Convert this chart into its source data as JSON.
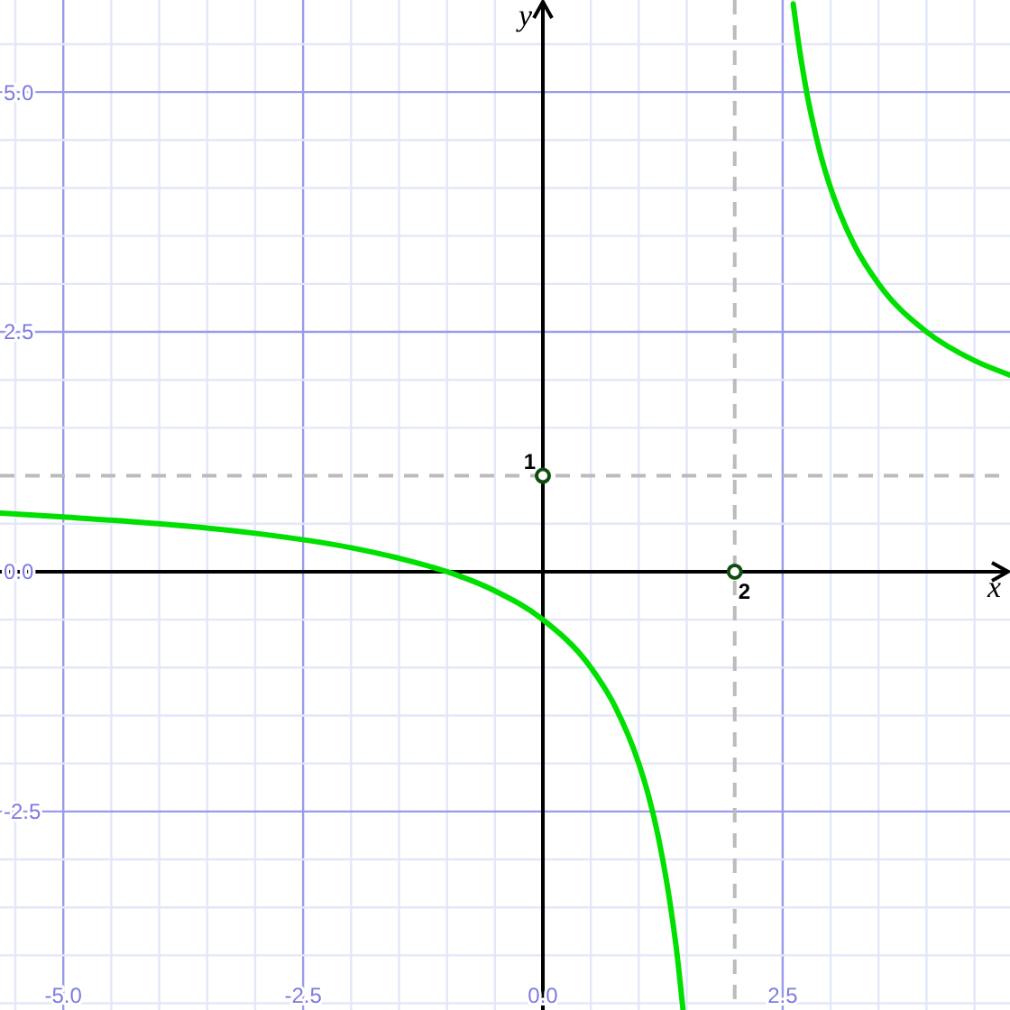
{
  "chart_data": {
    "type": "line",
    "xlabel": "x",
    "ylabel": "y",
    "xlim": [
      -5.66,
      4.87
    ],
    "ylim": [
      -4.57,
      5.96
    ],
    "xticks": [
      {
        "value": -5.5,
        "label": null
      },
      {
        "value": -5,
        "label": "-5.0"
      },
      {
        "value": -4.5,
        "label": null
      },
      {
        "value": -4,
        "label": null
      },
      {
        "value": -3.5,
        "label": null
      },
      {
        "value": -3,
        "label": null
      },
      {
        "value": -2.5,
        "label": "-2.5"
      },
      {
        "value": -2,
        "label": null
      },
      {
        "value": -1.5,
        "label": null
      },
      {
        "value": -1,
        "label": null
      },
      {
        "value": -0.5,
        "label": null
      },
      {
        "value": 0,
        "label": "0.0"
      },
      {
        "value": 0.5,
        "label": null
      },
      {
        "value": 1,
        "label": null
      },
      {
        "value": 1.5,
        "label": null
      },
      {
        "value": 2.5,
        "label": "2.5"
      },
      {
        "value": 3,
        "label": null
      },
      {
        "value": 3.5,
        "label": null
      },
      {
        "value": 4,
        "label": null
      },
      {
        "value": 4.5,
        "label": null
      }
    ],
    "yticks": [
      {
        "value": -4.5,
        "label": null
      },
      {
        "value": -4,
        "label": null
      },
      {
        "value": -3.5,
        "label": null
      },
      {
        "value": -3,
        "label": null
      },
      {
        "value": -2.5,
        "label": "-2.5"
      },
      {
        "value": -2,
        "label": null
      },
      {
        "value": -1.5,
        "label": null
      },
      {
        "value": -1,
        "label": null
      },
      {
        "value": -0.5,
        "label": null
      },
      {
        "value": 0,
        "label": "0.0"
      },
      {
        "value": 0.5,
        "label": null
      },
      {
        "value": 1.5,
        "label": null
      },
      {
        "value": 2,
        "label": null
      },
      {
        "value": 2.5,
        "label": "2.5"
      },
      {
        "value": 3,
        "label": null
      },
      {
        "value": 3.5,
        "label": null
      },
      {
        "value": 4,
        "label": null
      },
      {
        "value": 4.5,
        "label": null
      },
      {
        "value": 5,
        "label": "5.0"
      },
      {
        "value": 5.5,
        "label": null
      }
    ],
    "grid": true,
    "series": [
      {
        "color": "#00e000",
        "x": [
          -5.66,
          -5,
          -4,
          -3,
          -2,
          -1.5,
          -1,
          -0.5,
          0,
          0.5,
          0.75,
          1,
          1.1,
          1.2,
          1.3,
          1.35,
          1.4,
          1.46
        ],
        "values": [
          0.61,
          0.57,
          0.5,
          0.4,
          0.25,
          0.14,
          0,
          -0.2,
          -0.5,
          -1,
          -1.4,
          -2,
          -2.33,
          -2.75,
          -3.29,
          -3.62,
          -4,
          -4.56
        ]
      },
      {
        "color": "#00e000",
        "x": [
          2.61,
          2.65,
          2.7,
          2.75,
          2.8,
          2.9,
          3,
          3.1,
          3.25,
          3.5,
          4,
          4.5,
          4.87
        ],
        "values": [
          5.92,
          5.62,
          5.29,
          5,
          4.75,
          4.33,
          4,
          3.73,
          3.4,
          3,
          2.5,
          2.2,
          2.05
        ]
      },
      {
        "type": "scatter",
        "color": "#0d4d0d",
        "marker": "circle",
        "x": [
          0,
          2
        ],
        "values": [
          1,
          0
        ]
      }
    ],
    "ref_lines": [
      {
        "axis": "y",
        "value": 1,
        "label": "1",
        "color": "#bbbbbb",
        "line_style": "dashed"
      },
      {
        "axis": "x",
        "value": 2,
        "label": "2",
        "color": "#bbbbbb",
        "line_style": "dashed"
      }
    ]
  }
}
